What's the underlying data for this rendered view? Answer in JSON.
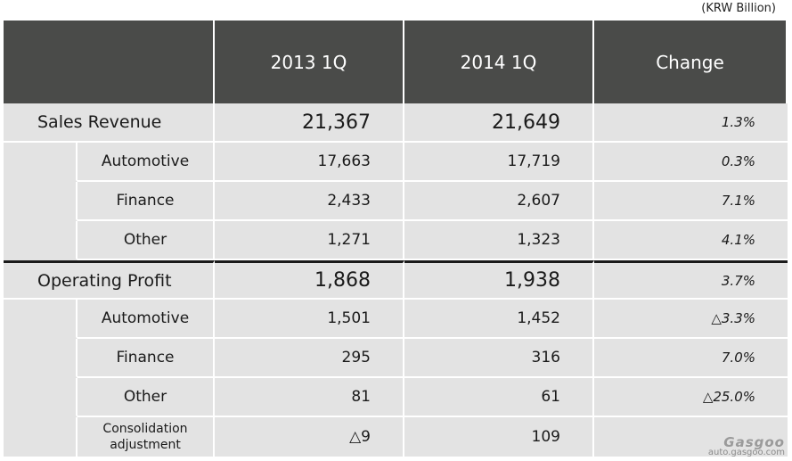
{
  "unit_label": "(KRW Billion)",
  "columns": [
    "",
    "2013 1Q",
    "2014 1Q",
    "Change"
  ],
  "sections": [
    {
      "label": "Sales Revenue",
      "v2013": "21,367",
      "v2014": "21,649",
      "change": "1.3%",
      "rows": [
        {
          "label": "Automotive",
          "v2013": "17,663",
          "v2014": "17,719",
          "change": "0.3%"
        },
        {
          "label": "Finance",
          "v2013": "2,433",
          "v2014": "2,607",
          "change": "7.1%"
        },
        {
          "label": "Other",
          "v2013": "1,271",
          "v2014": "1,323",
          "change": "4.1%"
        }
      ]
    },
    {
      "label": "Operating Profit",
      "v2013": "1,868",
      "v2014": "1,938",
      "change": "3.7%",
      "rows": [
        {
          "label": "Automotive",
          "v2013": "1,501",
          "v2014": "1,452",
          "change": "△3.3%"
        },
        {
          "label": "Finance",
          "v2013": "295",
          "v2014": "316",
          "change": "7.0%"
        },
        {
          "label": "Other",
          "v2013": "81",
          "v2014": "61",
          "change": "△25.0%"
        },
        {
          "label_line1": "Consolidation",
          "label_line2": "adjustment",
          "v2013": "△9",
          "v2014": "109",
          "change": ""
        }
      ]
    }
  ],
  "watermark": {
    "logo": "Gasgoo",
    "url": "auto.gasgoo.com"
  }
}
